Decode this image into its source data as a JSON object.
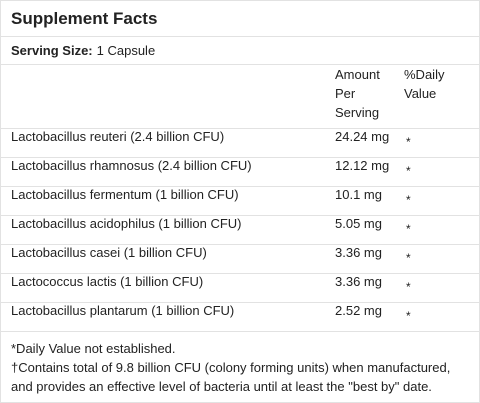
{
  "title": "Supplement Facts",
  "serving": {
    "label": "Serving Size:",
    "value": "1 Capsule"
  },
  "columns": {
    "amount": [
      "Amount",
      "Per",
      "Serving"
    ],
    "daily_value": [
      "%Daily",
      "Value"
    ]
  },
  "rows": [
    {
      "name": "Lactobacillus reuteri (2.4 billion CFU)",
      "amount": "24.24 mg",
      "dv": "*"
    },
    {
      "name": "Lactobacillus rhamnosus (2.4 billion CFU)",
      "amount": "12.12 mg",
      "dv": "*"
    },
    {
      "name": "Lactobacillus fermentum (1 billion CFU)",
      "amount": "10.1 mg",
      "dv": "*"
    },
    {
      "name": "Lactobacillus acidophilus (1 billion CFU)",
      "amount": "5.05 mg",
      "dv": "*"
    },
    {
      "name": "Lactobacillus casei (1 billion CFU)",
      "amount": "3.36 mg",
      "dv": "*"
    },
    {
      "name": "Lactococcus lactis (1 billion CFU)",
      "amount": "3.36 mg",
      "dv": "*"
    },
    {
      "name": "Lactobacillus plantarum (1 billion CFU)",
      "amount": "2.52 mg",
      "dv": "*"
    }
  ],
  "footnotes": [
    "*Daily Value not established.",
    "†Contains total of 9.8 billion CFU (colony forming units) when manufactured, and provides an effective level of bacteria until at least the \"best by\" date."
  ]
}
